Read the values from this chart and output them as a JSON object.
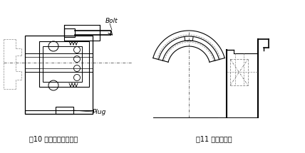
{
  "background_color": "#ffffff",
  "caption_left": "图10 使用螺丝拆卸外圈",
  "caption_right": "图11 折卸用切口",
  "caption_fontsize": 7.0,
  "label_bolt": "Bolt",
  "label_plug": "Plug",
  "label_fontsize": 6.5,
  "line_color": "#000000",
  "gray_color": "#888888",
  "dash_color": "#555555"
}
